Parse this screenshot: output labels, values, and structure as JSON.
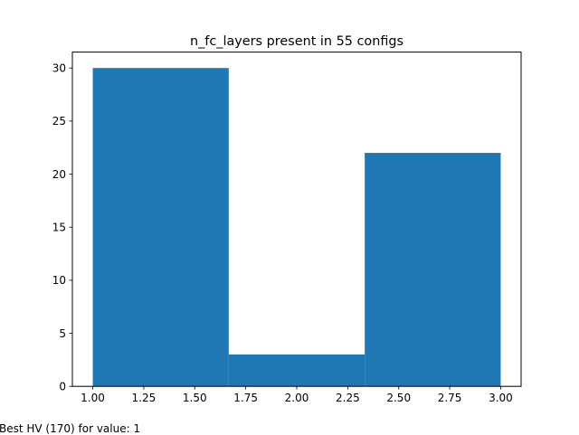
{
  "chart_data": {
    "type": "bar",
    "title": "n_fc_layers present in 55 configs",
    "xlabel": "",
    "ylabel": "",
    "bins": [
      {
        "x_start": 1.0,
        "x_end": 1.6667,
        "value": 30
      },
      {
        "x_start": 1.6667,
        "x_end": 2.3333,
        "value": 3
      },
      {
        "x_start": 2.3333,
        "x_end": 3.0,
        "value": 22
      }
    ],
    "xlim": [
      0.9,
      3.1
    ],
    "ylim": [
      0,
      31.5
    ],
    "x_ticks": [
      "1.00",
      "1.25",
      "1.50",
      "1.75",
      "2.00",
      "2.25",
      "2.50",
      "2.75",
      "3.00"
    ],
    "x_tick_values": [
      1.0,
      1.25,
      1.5,
      1.75,
      2.0,
      2.25,
      2.5,
      2.75,
      3.0
    ],
    "y_ticks": [
      "0",
      "5",
      "10",
      "15",
      "20",
      "25",
      "30"
    ],
    "y_tick_values": [
      0,
      5,
      10,
      15,
      20,
      25,
      30
    ],
    "grid": false,
    "legend": "none",
    "bar_color": "#1f77b4"
  },
  "footer": {
    "note": "Best HV (170) for value: 1"
  }
}
